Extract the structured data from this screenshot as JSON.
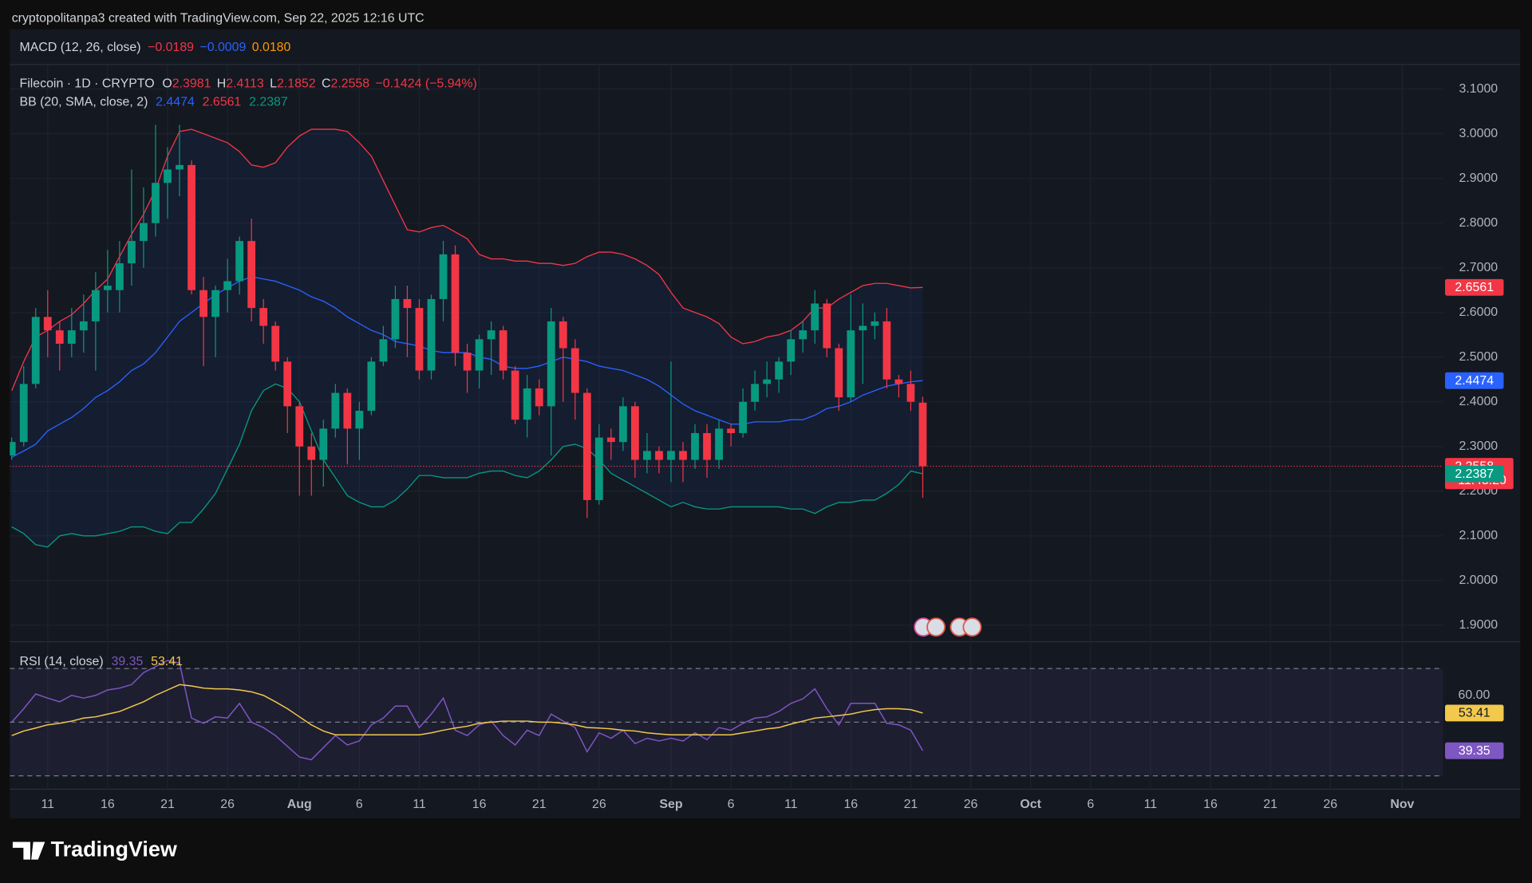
{
  "attribution": "cryptopolitanpa3 created with TradingView.com, Sep 22, 2025 12:16 UTC",
  "logo": "TradingView",
  "chart_data": {
    "type": "candlestick",
    "symbol": "Filecoin · 1D · CRYPTO",
    "ohlc_prefixes": [
      "O",
      "H",
      "L",
      "C"
    ],
    "change": "−0.1424 (−5.94%)",
    "countdown": "11:43:20",
    "macd": {
      "label": "MACD (12, 26, close)",
      "values": [
        "−0.0189",
        "−0.0009",
        "0.0180"
      ]
    },
    "up_color": "#089981",
    "down_color": "#f23645",
    "x": [
      "2025-07-08",
      "2025-07-09",
      "2025-07-10",
      "2025-07-11",
      "2025-07-12",
      "2025-07-13",
      "2025-07-14",
      "2025-07-15",
      "2025-07-16",
      "2025-07-17",
      "2025-07-18",
      "2025-07-19",
      "2025-07-20",
      "2025-07-21",
      "2025-07-22",
      "2025-07-23",
      "2025-07-24",
      "2025-07-25",
      "2025-07-26",
      "2025-07-27",
      "2025-07-28",
      "2025-07-29",
      "2025-07-30",
      "2025-07-31",
      "2025-08-01",
      "2025-08-02",
      "2025-08-03",
      "2025-08-04",
      "2025-08-05",
      "2025-08-06",
      "2025-08-07",
      "2025-08-08",
      "2025-08-09",
      "2025-08-10",
      "2025-08-11",
      "2025-08-12",
      "2025-08-13",
      "2025-08-14",
      "2025-08-15",
      "2025-08-16",
      "2025-08-17",
      "2025-08-18",
      "2025-08-19",
      "2025-08-20",
      "2025-08-21",
      "2025-08-22",
      "2025-08-23",
      "2025-08-24",
      "2025-08-25",
      "2025-08-26",
      "2025-08-27",
      "2025-08-28",
      "2025-08-29",
      "2025-08-30",
      "2025-08-31",
      "2025-09-01",
      "2025-09-02",
      "2025-09-03",
      "2025-09-04",
      "2025-09-05",
      "2025-09-06",
      "2025-09-07",
      "2025-09-08",
      "2025-09-09",
      "2025-09-10",
      "2025-09-11",
      "2025-09-12",
      "2025-09-13",
      "2025-09-14",
      "2025-09-15",
      "2025-09-16",
      "2025-09-17",
      "2025-09-18",
      "2025-09-19",
      "2025-09-20",
      "2025-09-21",
      "2025-09-22"
    ],
    "open": [
      2.28,
      2.31,
      2.44,
      2.59,
      2.56,
      2.53,
      2.56,
      2.58,
      2.65,
      2.65,
      2.71,
      2.76,
      2.8,
      2.89,
      2.92,
      2.93,
      2.65,
      2.59,
      2.65,
      2.67,
      2.76,
      2.61,
      2.57,
      2.49,
      2.39,
      2.3,
      2.27,
      2.34,
      2.42,
      2.34,
      2.38,
      2.49,
      2.54,
      2.63,
      2.61,
      2.47,
      2.63,
      2.73,
      2.51,
      2.47,
      2.54,
      2.56,
      2.47,
      2.36,
      2.43,
      2.39,
      2.58,
      2.52,
      2.42,
      2.18,
      2.32,
      2.31,
      2.39,
      2.27,
      2.29,
      2.27,
      2.29,
      2.27,
      2.33,
      2.27,
      2.34,
      2.33,
      2.4,
      2.44,
      2.45,
      2.49,
      2.54,
      2.56,
      2.62,
      2.52,
      2.41,
      2.56,
      2.57,
      2.58,
      2.45,
      2.44,
      2.3981
    ],
    "high": [
      2.32,
      2.48,
      2.61,
      2.65,
      2.58,
      2.61,
      2.64,
      2.69,
      2.74,
      2.76,
      2.92,
      2.88,
      3.02,
      2.97,
      3.02,
      2.94,
      2.68,
      2.66,
      2.72,
      2.77,
      2.81,
      2.63,
      2.58,
      2.5,
      2.4,
      2.33,
      2.36,
      2.44,
      2.43,
      2.4,
      2.5,
      2.57,
      2.66,
      2.66,
      2.63,
      2.64,
      2.76,
      2.75,
      2.53,
      2.55,
      2.58,
      2.57,
      2.48,
      2.46,
      2.45,
      2.61,
      2.59,
      2.54,
      2.43,
      2.35,
      2.34,
      2.41,
      2.4,
      2.33,
      2.3,
      2.49,
      2.31,
      2.35,
      2.35,
      2.36,
      2.35,
      2.43,
      2.47,
      2.49,
      2.5,
      2.56,
      2.58,
      2.65,
      2.63,
      2.53,
      2.64,
      2.62,
      2.6,
      2.61,
      2.46,
      2.47,
      2.4113
    ],
    "low": [
      2.27,
      2.3,
      2.43,
      2.5,
      2.47,
      2.5,
      2.51,
      2.47,
      2.6,
      2.6,
      2.66,
      2.7,
      2.77,
      2.81,
      2.86,
      2.64,
      2.48,
      2.5,
      2.6,
      2.64,
      2.58,
      2.53,
      2.47,
      2.33,
      2.19,
      2.19,
      2.21,
      2.32,
      2.26,
      2.27,
      2.37,
      2.48,
      2.52,
      2.5,
      2.45,
      2.45,
      2.58,
      2.48,
      2.42,
      2.43,
      2.46,
      2.45,
      2.35,
      2.32,
      2.37,
      2.28,
      2.4,
      2.36,
      2.14,
      2.17,
      2.27,
      2.29,
      2.23,
      2.24,
      2.24,
      2.22,
      2.22,
      2.25,
      2.23,
      2.25,
      2.3,
      2.32,
      2.38,
      2.41,
      2.42,
      2.46,
      2.51,
      2.53,
      2.5,
      2.38,
      2.4,
      2.44,
      2.54,
      2.43,
      2.41,
      2.38,
      2.1852
    ],
    "close": [
      2.31,
      2.44,
      2.59,
      2.56,
      2.53,
      2.56,
      2.58,
      2.65,
      2.66,
      2.71,
      2.76,
      2.8,
      2.89,
      2.92,
      2.93,
      2.65,
      2.59,
      2.65,
      2.67,
      2.76,
      2.61,
      2.57,
      2.49,
      2.39,
      2.3,
      2.27,
      2.34,
      2.42,
      2.34,
      2.38,
      2.49,
      2.54,
      2.63,
      2.61,
      2.47,
      2.63,
      2.73,
      2.51,
      2.47,
      2.54,
      2.56,
      2.47,
      2.36,
      2.43,
      2.39,
      2.58,
      2.52,
      2.42,
      2.18,
      2.32,
      2.31,
      2.39,
      2.27,
      2.29,
      2.27,
      2.29,
      2.27,
      2.33,
      2.27,
      2.34,
      2.33,
      2.4,
      2.44,
      2.45,
      2.49,
      2.54,
      2.56,
      2.62,
      2.52,
      2.41,
      2.56,
      2.57,
      2.58,
      2.45,
      2.44,
      2.4,
      2.2558
    ],
    "bb": {
      "label": "BB (20, SMA, close, 2)",
      "series": [
        {
          "color": "#2962ff",
          "values": [
            2.276,
            2.29,
            2.305,
            2.335,
            2.35,
            2.365,
            2.385,
            2.41,
            2.425,
            2.445,
            2.47,
            2.485,
            2.51,
            2.545,
            2.58,
            2.6,
            2.62,
            2.64,
            2.655,
            2.67,
            2.68,
            2.675,
            2.67,
            2.66,
            2.65,
            2.635,
            2.625,
            2.61,
            2.59,
            2.575,
            2.56,
            2.55,
            2.535,
            2.53,
            2.525,
            2.515,
            2.51,
            2.51,
            2.51,
            2.5,
            2.495,
            2.48,
            2.475,
            2.475,
            2.48,
            2.49,
            2.5,
            2.495,
            2.49,
            2.48,
            2.475,
            2.47,
            2.46,
            2.45,
            2.435,
            2.415,
            2.395,
            2.38,
            2.37,
            2.36,
            2.35,
            2.35,
            2.355,
            2.355,
            2.355,
            2.36,
            2.36,
            2.37,
            2.385,
            2.39,
            2.4,
            2.415,
            2.425,
            2.435,
            2.44,
            2.445,
            2.4474
          ]
        },
        {
          "color": "#f23645",
          "values": [
            2.425,
            2.49,
            2.545,
            2.56,
            2.58,
            2.595,
            2.62,
            2.65,
            2.675,
            2.725,
            2.775,
            2.82,
            2.875,
            2.95,
            3.005,
            3.01,
            3.0,
            2.99,
            2.98,
            2.96,
            2.93,
            2.925,
            2.935,
            2.97,
            2.995,
            3.01,
            3.01,
            3.01,
            3.005,
            2.98,
            2.95,
            2.895,
            2.84,
            2.785,
            2.78,
            2.79,
            2.795,
            2.78,
            2.765,
            2.73,
            2.72,
            2.72,
            2.715,
            2.715,
            2.71,
            2.71,
            2.705,
            2.71,
            2.725,
            2.735,
            2.735,
            2.73,
            2.72,
            2.705,
            2.685,
            2.645,
            2.61,
            2.6,
            2.59,
            2.575,
            2.545,
            2.53,
            2.535,
            2.545,
            2.55,
            2.56,
            2.58,
            2.61,
            2.61,
            2.63,
            2.645,
            2.66,
            2.665,
            2.665,
            2.66,
            2.655,
            2.6561
          ]
        },
        {
          "color": "#089981",
          "values": [
            2.12,
            2.105,
            2.08,
            2.075,
            2.1,
            2.105,
            2.1,
            2.1,
            2.105,
            2.11,
            2.12,
            2.12,
            2.11,
            2.105,
            2.13,
            2.13,
            2.16,
            2.195,
            2.25,
            2.305,
            2.38,
            2.425,
            2.44,
            2.43,
            2.4,
            2.335,
            2.27,
            2.23,
            2.19,
            2.175,
            2.165,
            2.165,
            2.18,
            2.205,
            2.235,
            2.235,
            2.23,
            2.23,
            2.23,
            2.24,
            2.245,
            2.245,
            2.235,
            2.23,
            2.245,
            2.27,
            2.3,
            2.305,
            2.295,
            2.27,
            2.24,
            2.225,
            2.21,
            2.195,
            2.18,
            2.165,
            2.175,
            2.165,
            2.16,
            2.16,
            2.165,
            2.165,
            2.165,
            2.165,
            2.165,
            2.16,
            2.16,
            2.15,
            2.165,
            2.175,
            2.175,
            2.18,
            2.18,
            2.195,
            2.215,
            2.245,
            2.2387
          ]
        }
      ]
    },
    "xlim": [
      "2025-07-08",
      "2025-11-04"
    ],
    "xticks": [
      {
        "value": "2025-07-11",
        "label": "11"
      },
      {
        "value": "2025-07-16",
        "label": "16"
      },
      {
        "value": "2025-07-21",
        "label": "21"
      },
      {
        "value": "2025-07-26",
        "label": "26"
      },
      {
        "value": "2025-08-01",
        "label": "Aug"
      },
      {
        "value": "2025-08-06",
        "label": "6"
      },
      {
        "value": "2025-08-11",
        "label": "11"
      },
      {
        "value": "2025-08-16",
        "label": "16"
      },
      {
        "value": "2025-08-21",
        "label": "21"
      },
      {
        "value": "2025-08-26",
        "label": "26"
      },
      {
        "value": "2025-09-01",
        "label": "Sep"
      },
      {
        "value": "2025-09-06",
        "label": "6"
      },
      {
        "value": "2025-09-11",
        "label": "11"
      },
      {
        "value": "2025-09-16",
        "label": "16"
      },
      {
        "value": "2025-09-21",
        "label": "21"
      },
      {
        "value": "2025-09-26",
        "label": "26"
      },
      {
        "value": "2025-10-01",
        "label": "Oct"
      },
      {
        "value": "2025-10-06",
        "label": "6"
      },
      {
        "value": "2025-10-11",
        "label": "11"
      },
      {
        "value": "2025-10-16",
        "label": "16"
      },
      {
        "value": "2025-10-21",
        "label": "21"
      },
      {
        "value": "2025-10-26",
        "label": "26"
      },
      {
        "value": "2025-11-01",
        "label": "Nov"
      }
    ],
    "ylim": [
      1.863,
      3.155
    ],
    "yticks": [
      {
        "value": 3.1,
        "label": "3.1000"
      },
      {
        "value": 3.0,
        "label": "3.0000"
      },
      {
        "value": 2.9,
        "label": "2.9000"
      },
      {
        "value": 2.8,
        "label": "2.8000"
      },
      {
        "value": 2.7,
        "label": "2.7000"
      },
      {
        "value": 2.6,
        "label": "2.6000"
      },
      {
        "value": 2.5,
        "label": "2.5000"
      },
      {
        "value": 2.4,
        "label": "2.4000"
      },
      {
        "value": 2.3,
        "label": "2.3000"
      },
      {
        "value": 2.2,
        "label": "2.2000"
      },
      {
        "value": 2.1,
        "label": "2.1000"
      },
      {
        "value": 2.0,
        "label": "2.0000"
      },
      {
        "value": 1.9,
        "label": "1.9000"
      }
    ],
    "grid": true,
    "rsi": {
      "label": "RSI (14, close)",
      "ylim": [
        25,
        80
      ],
      "yticks": [
        {
          "value": 60,
          "label": "60.00"
        }
      ],
      "levels": [
        70,
        50,
        30
      ],
      "series": [
        {
          "color": "#7e57c2",
          "values": [
            50,
            55,
            60.5,
            59,
            57.6,
            60,
            59,
            60,
            62,
            62.7,
            64,
            68.5,
            70.7,
            73,
            72,
            51.5,
            49.6,
            52,
            51.5,
            57,
            50,
            48,
            45,
            41,
            37,
            36,
            40.5,
            45,
            41.5,
            43,
            49,
            51.5,
            56,
            56,
            48,
            53,
            59,
            47,
            45,
            49,
            50.4,
            45,
            41.5,
            47,
            45,
            53,
            50.4,
            48,
            39,
            46,
            44,
            47,
            42,
            44,
            43,
            44,
            43,
            46,
            43.5,
            48,
            47,
            49.6,
            51.5,
            52,
            54,
            57,
            58.7,
            62.4,
            55,
            49,
            57,
            57,
            57,
            49.6,
            49,
            47,
            39.35
          ]
        },
        {
          "color": "#f2c94c",
          "values": [
            45,
            46.7,
            47.8,
            49,
            49.6,
            50.4,
            51.5,
            52,
            53,
            54,
            55.8,
            57.6,
            60,
            62,
            64,
            63.5,
            62.7,
            62.4,
            62.4,
            62,
            61.3,
            60,
            57.6,
            55,
            52,
            49,
            46.7,
            45.3,
            45.3,
            45.3,
            45.3,
            45.3,
            45.3,
            45.3,
            45.3,
            46,
            47,
            47.8,
            48.5,
            49.6,
            50,
            50.4,
            50.4,
            50.4,
            50,
            50,
            49.6,
            49,
            48,
            47.8,
            47.5,
            47,
            46.7,
            46,
            45.6,
            45.3,
            45.3,
            45.3,
            45.3,
            45.3,
            45.3,
            46,
            46.7,
            47.5,
            48,
            49.3,
            50.4,
            51.5,
            52,
            52.5,
            53,
            54,
            54.7,
            55,
            55,
            54.7,
            53.41
          ]
        }
      ]
    }
  }
}
